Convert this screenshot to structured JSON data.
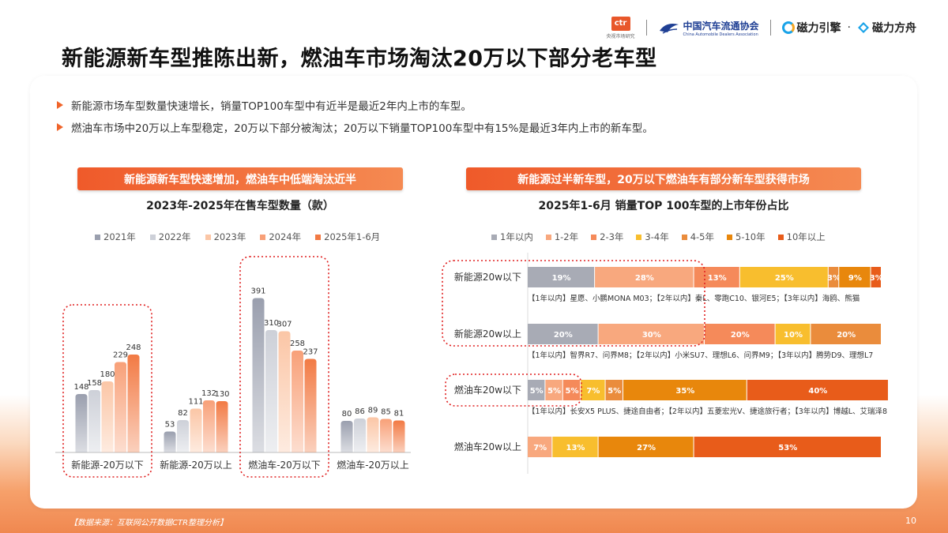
{
  "header": {
    "ctr_logo": "ctr",
    "ctr_sub": "央视市场研究",
    "caam_cn": "中国汽车流通协会",
    "caam_en": "China Automobile Dealers Association",
    "cl_engine": "磁力引擎",
    "cl_dot": "·",
    "cl_fangzhou": "磁力方舟"
  },
  "title": "新能源新车型推陈出新，燃油车市场淘汰20万以下部分老车型",
  "bullets": [
    "新能源市场车型数量快速增长，销量TOP100车型中有近半是最近2年内上市的车型。",
    "燃油车市场中20万以上车型稳定，20万以下部分被淘汰；20万以下销量TOP100车型中有15%是最近3年内上市的新车型。"
  ],
  "left_panel": {
    "pill": "新能源新车型快速增加，燃油车中低端淘汰近半",
    "subtitle": "2023年-2025年在售车型数量（款）"
  },
  "right_panel": {
    "pill": "新能源过半新车型，20万以下燃油车有部分新车型获得市场",
    "subtitle": "2025年1-6月 销量TOP 100车型的上市年份占比"
  },
  "colors": {
    "accent": "#ef5a2a",
    "left_series": [
      "#9a9fae",
      "#cdd0d8",
      "#fbc6a6",
      "#f8a078",
      "#f27a44"
    ],
    "right_series": [
      "#a8abb5",
      "#f8a87e",
      "#f58a5a",
      "#f8be2e",
      "#ea8c3c",
      "#e8870c",
      "#e85c1a"
    ],
    "dotted_box": "#e02020"
  },
  "chart_data": [
    {
      "type": "bar",
      "title": "2023年-2025年在售车型数量（款）",
      "categories": [
        "新能源-20万以下",
        "新能源-20万以上",
        "燃油车-20万以下",
        "燃油车-20万以上"
      ],
      "series": [
        {
          "name": "2021年",
          "values": [
            148,
            53,
            391,
            80
          ]
        },
        {
          "name": "2022年",
          "values": [
            158,
            82,
            310,
            86
          ]
        },
        {
          "name": "2023年",
          "values": [
            180,
            111,
            307,
            89
          ]
        },
        {
          "name": "2024年",
          "values": [
            229,
            132,
            258,
            85
          ]
        },
        {
          "name": "2025年1-6月",
          "values": [
            248,
            130,
            237,
            81
          ]
        }
      ],
      "ylim": [
        0,
        420
      ],
      "grid": false,
      "legend": "top",
      "highlighted_categories": [
        "新能源-20万以下",
        "燃油车-20万以下"
      ]
    },
    {
      "type": "bar",
      "orientation": "horizontal-stacked",
      "title": "2025年1-6月 销量TOP 100车型的上市年份占比",
      "categories": [
        "新能源20w以下",
        "新能源20w以上",
        "燃油车20w以下",
        "燃油车20w以上"
      ],
      "series": [
        {
          "name": "1年以内",
          "values": [
            19,
            20,
            5,
            0
          ]
        },
        {
          "name": "1-2年",
          "values": [
            28,
            30,
            5,
            7
          ]
        },
        {
          "name": "2-3年",
          "values": [
            13,
            20,
            5,
            0
          ]
        },
        {
          "name": "3-4年",
          "values": [
            25,
            10,
            7,
            13
          ]
        },
        {
          "name": "4-5年",
          "values": [
            3,
            20,
            5,
            0
          ]
        },
        {
          "name": "5-10年",
          "values": [
            9,
            0,
            35,
            27
          ]
        },
        {
          "name": "10年以上",
          "values": [
            3,
            0,
            40,
            53
          ]
        }
      ],
      "value_labels": [
        [
          "19%",
          "28%",
          "13%",
          "25%",
          "3%",
          "9%",
          "3%"
        ],
        [
          "20%",
          "30%",
          "20%",
          "10%",
          "20%"
        ],
        [
          "5%",
          "5%",
          "5%",
          "7%",
          "5%",
          "35%",
          "40%"
        ],
        [
          "7%",
          "13%",
          "27%",
          "53%"
        ]
      ],
      "annotations": [
        "【1年以内】星愿、小鹏MONA M03；【2年以内】秦L、零跑C10、银河E5；【3年以内】海鸥、熊猫",
        "【1年以内】智界R7、问界M8；【2年以内】小米SU7、理想L6、问界M9；【3年以内】腾势D9、理想L7",
        "【1年以内】长安X5 PLUS、捷途自由者；【2年以内】五菱宏光V、捷途旅行者；【3年以内】博越L、艾瑞泽8"
      ],
      "xlim": [
        0,
        100
      ],
      "legend": "top",
      "highlighted_categories": [
        "新能源20w以下",
        "新能源20w以上",
        "燃油车20w以下"
      ]
    }
  ],
  "footer": {
    "source": "【数据来源：互联网公开数据CTR整理分析】",
    "page": "10"
  }
}
